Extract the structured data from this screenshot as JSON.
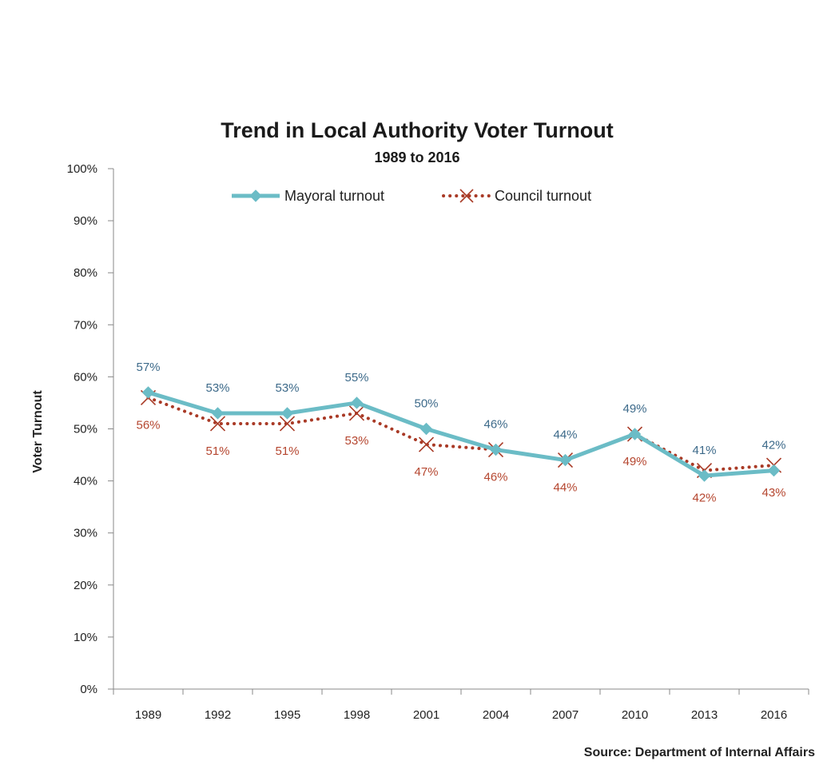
{
  "chart_data": {
    "type": "line",
    "title": "Trend in Local Authority Voter Turnout",
    "subtitle": "1989  to 2016",
    "xlabel": "",
    "ylabel": "Voter Turnout",
    "source": "Source: Department of Internal Affairs",
    "categories": [
      "1989",
      "1992",
      "1995",
      "1998",
      "2001",
      "2004",
      "2007",
      "2010",
      "2013",
      "2016"
    ],
    "ylim": [
      0,
      100
    ],
    "yticks": [
      0,
      10,
      20,
      30,
      40,
      50,
      60,
      70,
      80,
      90,
      100
    ],
    "ytick_labels": [
      "0%",
      "10%",
      "20%",
      "30%",
      "40%",
      "50%",
      "60%",
      "70%",
      "80%",
      "90%",
      "100%"
    ],
    "grid": false,
    "legend_position": "top",
    "series": [
      {
        "name": "Mayoral turnout",
        "values": [
          57,
          53,
          53,
          55,
          50,
          46,
          44,
          49,
          41,
          42
        ],
        "labels": [
          "57%",
          "53%",
          "53%",
          "55%",
          "50%",
          "46%",
          "44%",
          "49%",
          "41%",
          "42%"
        ],
        "line_color": "#6bbcc6",
        "label_color": "#3d6a8a",
        "marker": "diamond",
        "line_style": "solid",
        "label_side": "above"
      },
      {
        "name": "Council turnout",
        "values": [
          56,
          51,
          51,
          53,
          47,
          46,
          44,
          49,
          42,
          43
        ],
        "labels": [
          "56%",
          "51%",
          "51%",
          "53%",
          "47%",
          "46%",
          "44%",
          "49%",
          "42%",
          "43%"
        ],
        "line_color": "#a93a26",
        "label_color": "#b5462f",
        "marker": "x",
        "line_style": "dotted",
        "label_side": "below"
      }
    ]
  }
}
